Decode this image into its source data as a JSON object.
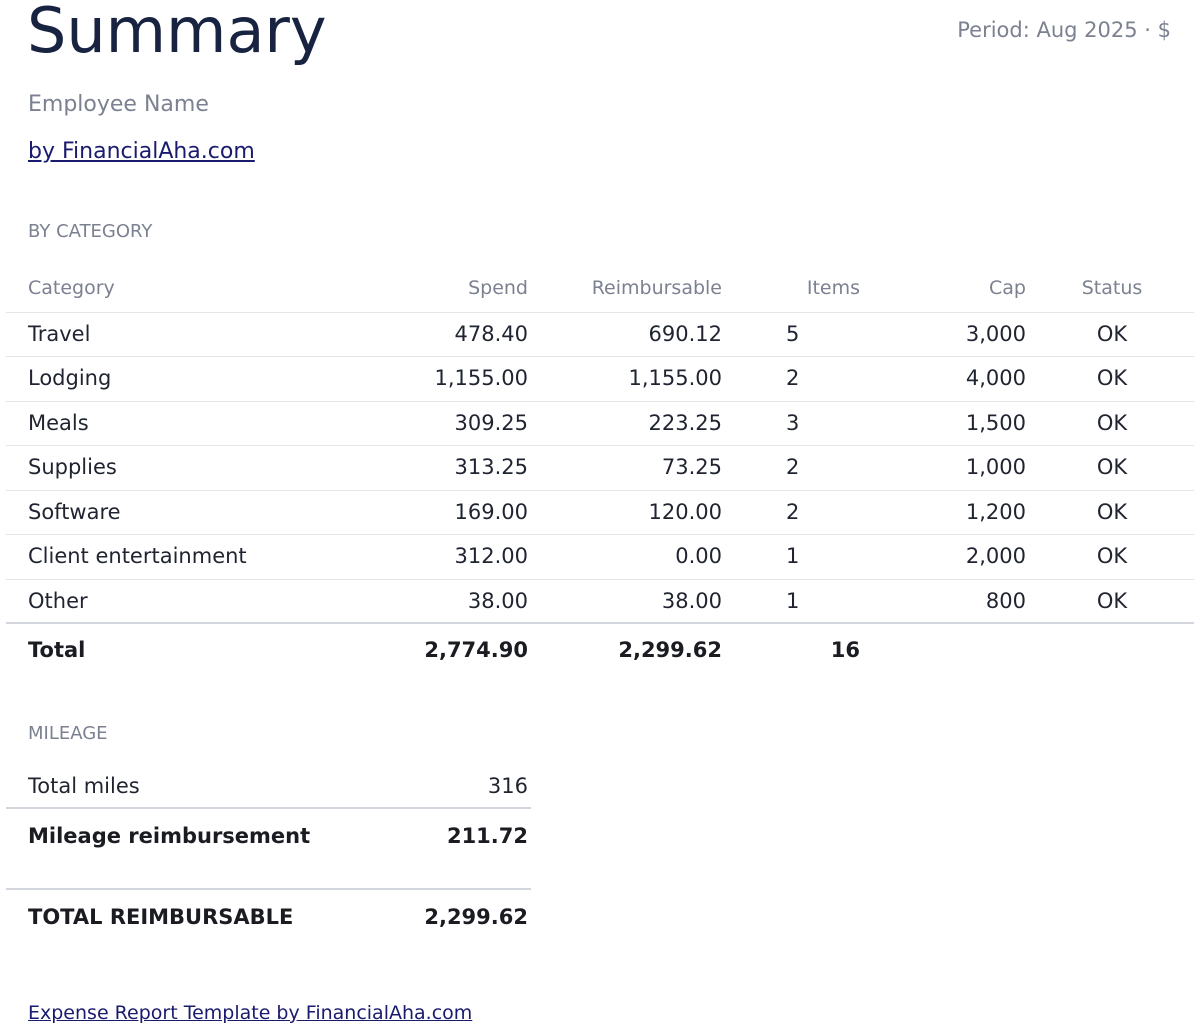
{
  "header": {
    "title": "Summary",
    "period": "Period: Aug 2025 · $",
    "employee_label": "Employee Name",
    "byline": "by FinancialAha.com"
  },
  "by_category": {
    "section_label": "BY CATEGORY",
    "columns": [
      "Category",
      "Spend",
      "Reimbursable",
      "Items",
      "Cap",
      "Status"
    ],
    "rows": [
      {
        "category": "Travel",
        "spend": "478.40",
        "reimbursable": "690.12",
        "items": "5",
        "cap": "3,000",
        "status": "OK"
      },
      {
        "category": "Lodging",
        "spend": "1,155.00",
        "reimbursable": "1,155.00",
        "items": "2",
        "cap": "4,000",
        "status": "OK"
      },
      {
        "category": "Meals",
        "spend": "309.25",
        "reimbursable": "223.25",
        "items": "3",
        "cap": "1,500",
        "status": "OK"
      },
      {
        "category": "Supplies",
        "spend": "313.25",
        "reimbursable": "73.25",
        "items": "2",
        "cap": "1,000",
        "status": "OK"
      },
      {
        "category": "Software",
        "spend": "169.00",
        "reimbursable": "120.00",
        "items": "2",
        "cap": "1,200",
        "status": "OK"
      },
      {
        "category": "Client entertainment",
        "spend": "312.00",
        "reimbursable": "0.00",
        "items": "1",
        "cap": "2,000",
        "status": "OK"
      },
      {
        "category": "Other",
        "spend": "38.00",
        "reimbursable": "38.00",
        "items": "1",
        "cap": "800",
        "status": "OK"
      }
    ],
    "total": {
      "label": "Total",
      "spend": "2,774.90",
      "reimbursable": "2,299.62",
      "items": "16"
    }
  },
  "mileage": {
    "section_label": "MILEAGE",
    "total_miles_label": "Total miles",
    "total_miles": "316",
    "reimbursement_label": "Mileage reimbursement",
    "reimbursement": "211.72"
  },
  "grand_total": {
    "label": "TOTAL REIMBURSABLE",
    "value": "2,299.62"
  },
  "footer": {
    "link": "Expense Report Template by FinancialAha.com"
  }
}
